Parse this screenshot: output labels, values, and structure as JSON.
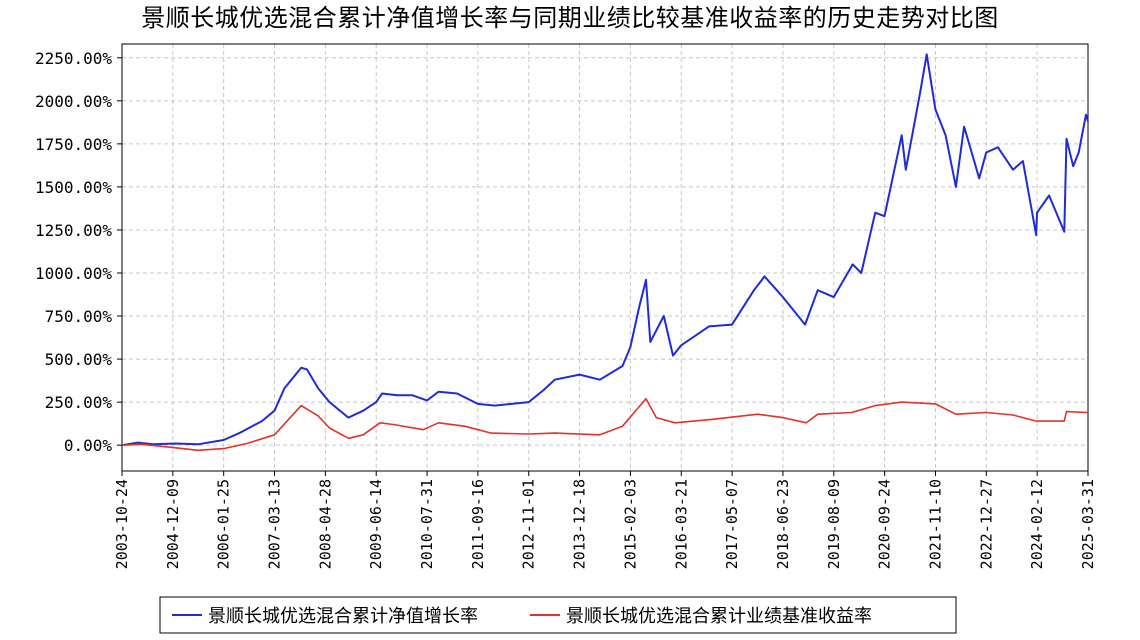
{
  "colors": {
    "nav": "#1f2bd6",
    "benchmark": "#e0332a",
    "grid": "#c8c8c8",
    "axis": "#000000"
  },
  "chart_data": {
    "type": "line",
    "title": "景顺长城优选混合累计净值增长率与同期业绩比较基准收益率的历史走势对比图",
    "xlabel": "",
    "ylabel": "",
    "xlim": [
      "2003-10-24",
      "2025-03-31"
    ],
    "ylim": [
      -150,
      2330
    ],
    "y_ticks": [
      0,
      250,
      500,
      750,
      1000,
      1250,
      1500,
      1750,
      2000,
      2250
    ],
    "y_tick_labels": [
      "0.00%",
      "250.00%",
      "500.00%",
      "750.00%",
      "1000.00%",
      "1250.00%",
      "1500.00%",
      "1750.00%",
      "2000.00%",
      "2250.00%"
    ],
    "x_tick_labels": [
      "2003-10-24",
      "2004-12-09",
      "2006-01-25",
      "2007-03-13",
      "2008-04-28",
      "2009-06-14",
      "2010-07-31",
      "2011-09-16",
      "2012-11-01",
      "2013-12-18",
      "2015-02-03",
      "2016-03-21",
      "2017-05-07",
      "2018-06-23",
      "2019-08-09",
      "2020-09-24",
      "2021-11-10",
      "2022-12-27",
      "2024-02-12",
      "2025-03-31"
    ],
    "grid": true,
    "legend_position": "bottom",
    "series": [
      {
        "name": "景顺长城优选混合累计净值增长率",
        "color": "#1f2bd6",
        "points": [
          [
            "2003-10-24",
            0
          ],
          [
            "2004-03-01",
            15
          ],
          [
            "2004-07-01",
            5
          ],
          [
            "2005-01-01",
            10
          ],
          [
            "2005-07-01",
            5
          ],
          [
            "2006-01-25",
            30
          ],
          [
            "2006-06-01",
            70
          ],
          [
            "2006-12-01",
            140
          ],
          [
            "2007-03-13",
            200
          ],
          [
            "2007-06-01",
            330
          ],
          [
            "2007-10-15",
            450
          ],
          [
            "2007-12-01",
            440
          ],
          [
            "2008-03-01",
            330
          ],
          [
            "2008-06-01",
            250
          ],
          [
            "2008-11-01",
            160
          ],
          [
            "2009-03-01",
            200
          ],
          [
            "2009-06-14",
            250
          ],
          [
            "2009-08-01",
            300
          ],
          [
            "2009-12-01",
            290
          ],
          [
            "2010-04-01",
            290
          ],
          [
            "2010-07-31",
            260
          ],
          [
            "2010-11-01",
            310
          ],
          [
            "2011-04-01",
            300
          ],
          [
            "2011-09-16",
            240
          ],
          [
            "2012-02-01",
            230
          ],
          [
            "2012-11-01",
            250
          ],
          [
            "2013-03-01",
            320
          ],
          [
            "2013-06-01",
            380
          ],
          [
            "2013-12-18",
            410
          ],
          [
            "2014-06-01",
            380
          ],
          [
            "2014-12-01",
            460
          ],
          [
            "2015-02-03",
            570
          ],
          [
            "2015-04-15",
            800
          ],
          [
            "2015-06-10",
            960
          ],
          [
            "2015-07-15",
            600
          ],
          [
            "2015-11-01",
            750
          ],
          [
            "2016-01-15",
            520
          ],
          [
            "2016-03-21",
            580
          ],
          [
            "2016-11-01",
            690
          ],
          [
            "2017-05-07",
            700
          ],
          [
            "2017-11-01",
            900
          ],
          [
            "2018-01-25",
            980
          ],
          [
            "2018-06-23",
            860
          ],
          [
            "2018-12-20",
            700
          ],
          [
            "2019-04-01",
            900
          ],
          [
            "2019-08-09",
            860
          ],
          [
            "2020-01-10",
            1050
          ],
          [
            "2020-03-20",
            1000
          ],
          [
            "2020-07-10",
            1350
          ],
          [
            "2020-09-24",
            1330
          ],
          [
            "2021-02-10",
            1800
          ],
          [
            "2021-03-15",
            1600
          ],
          [
            "2021-07-10",
            2050
          ],
          [
            "2021-09-01",
            2270
          ],
          [
            "2021-11-10",
            1950
          ],
          [
            "2022-02-01",
            1800
          ],
          [
            "2022-04-25",
            1500
          ],
          [
            "2022-07-01",
            1850
          ],
          [
            "2022-10-31",
            1550
          ],
          [
            "2022-12-27",
            1700
          ],
          [
            "2023-04-01",
            1730
          ],
          [
            "2023-08-01",
            1600
          ],
          [
            "2023-10-20",
            1650
          ],
          [
            "2024-02-05",
            1220
          ],
          [
            "2024-02-12",
            1350
          ],
          [
            "2024-05-20",
            1450
          ],
          [
            "2024-09-20",
            1240
          ],
          [
            "2024-10-08",
            1780
          ],
          [
            "2024-12-01",
            1620
          ],
          [
            "2025-01-15",
            1700
          ],
          [
            "2025-03-15",
            1920
          ],
          [
            "2025-03-31",
            1880
          ]
        ]
      },
      {
        "name": "景顺长城优选混合累计业绩基准收益率",
        "color": "#e0332a",
        "points": [
          [
            "2003-10-24",
            0
          ],
          [
            "2004-04-01",
            5
          ],
          [
            "2005-01-01",
            -15
          ],
          [
            "2005-07-01",
            -30
          ],
          [
            "2006-01-25",
            -20
          ],
          [
            "2006-08-01",
            10
          ],
          [
            "2007-03-13",
            60
          ],
          [
            "2007-10-15",
            230
          ],
          [
            "2008-03-01",
            170
          ],
          [
            "2008-06-01",
            100
          ],
          [
            "2008-11-01",
            40
          ],
          [
            "2009-03-01",
            60
          ],
          [
            "2009-07-15",
            130
          ],
          [
            "2009-11-01",
            120
          ],
          [
            "2010-07-01",
            90
          ],
          [
            "2010-11-01",
            130
          ],
          [
            "2011-06-01",
            110
          ],
          [
            "2012-01-01",
            70
          ],
          [
            "2012-11-01",
            65
          ],
          [
            "2013-06-01",
            70
          ],
          [
            "2014-06-01",
            60
          ],
          [
            "2014-12-01",
            110
          ],
          [
            "2015-06-10",
            270
          ],
          [
            "2015-09-01",
            160
          ],
          [
            "2016-01-30",
            130
          ],
          [
            "2016-12-01",
            150
          ],
          [
            "2017-12-01",
            180
          ],
          [
            "2018-06-23",
            160
          ],
          [
            "2018-12-31",
            130
          ],
          [
            "2019-04-01",
            180
          ],
          [
            "2020-01-01",
            190
          ],
          [
            "2020-07-10",
            230
          ],
          [
            "2021-02-10",
            250
          ],
          [
            "2021-11-10",
            240
          ],
          [
            "2022-04-25",
            180
          ],
          [
            "2022-12-27",
            190
          ],
          [
            "2023-08-01",
            175
          ],
          [
            "2024-02-05",
            140
          ],
          [
            "2024-09-20",
            140
          ],
          [
            "2024-10-08",
            195
          ],
          [
            "2025-03-31",
            190
          ]
        ]
      }
    ]
  }
}
